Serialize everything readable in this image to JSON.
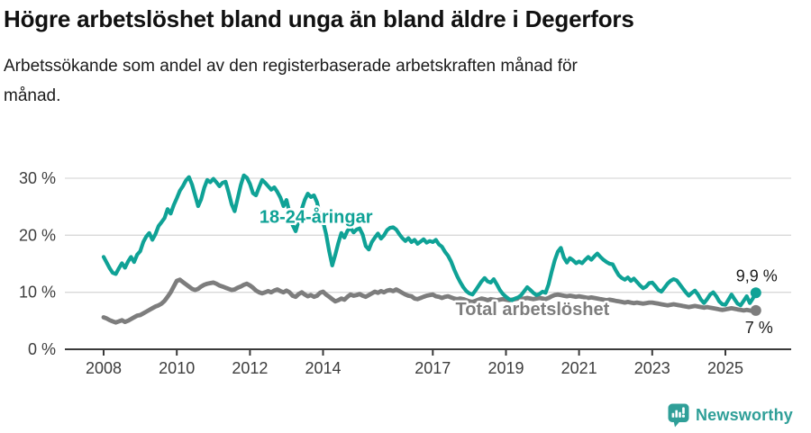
{
  "header": {
    "title": "Högre arbetslöshet bland unga än bland äldre i Degerfors",
    "subtitle_lines": [
      "Arbetssökande som andel av den registerbaserade arbetskraften månad för",
      "månad."
    ]
  },
  "chart_data": {
    "type": "line",
    "title": "Högre arbetslöshet bland unga än bland äldre i Degerfors",
    "subtitle": "Arbetssökande som andel av den registerbaserade arbetskraften månad för månad.",
    "x_unit": "month",
    "x_start": "2008-01",
    "x_end": "2025-11",
    "ylim": [
      0,
      32
    ],
    "grid": "horizontal",
    "gridline_color": "#d9d9d9",
    "axis_color": "#3a3a3a",
    "tick_label_color": "#3d3d3d",
    "y_axis": {
      "ticks": [
        {
          "label": "0 %",
          "value": 0
        },
        {
          "label": "10 %",
          "value": 10
        },
        {
          "label": "20 %",
          "value": 20
        },
        {
          "label": "30 %",
          "value": 30
        }
      ]
    },
    "x_axis": {
      "ticks": [
        {
          "label": "2008",
          "year": 2008
        },
        {
          "label": "2010",
          "year": 2010
        },
        {
          "label": "2012",
          "year": 2012
        },
        {
          "label": "2014",
          "year": 2014
        },
        {
          "label": "2017",
          "year": 2017
        },
        {
          "label": "2019",
          "year": 2019
        },
        {
          "label": "2021",
          "year": 2021
        },
        {
          "label": "2023",
          "year": 2023
        },
        {
          "label": "2025",
          "year": 2025
        }
      ]
    },
    "series": [
      {
        "id": "youth",
        "name": "18-24-åringar",
        "color": "#0fa296",
        "end_label": "9,9 %",
        "end_label_offset": [
          24,
          -13
        ],
        "values": [
          16.2,
          15.2,
          14.2,
          13.4,
          13.2,
          14.2,
          15.1,
          14.3,
          15.4,
          16.2,
          15.3,
          16.6,
          17.2,
          18.8,
          19.8,
          20.4,
          19.2,
          20.2,
          21.6,
          22.3,
          23.0,
          24.6,
          23.8,
          25.3,
          26.5,
          27.8,
          28.6,
          29.6,
          30.2,
          28.9,
          27.0,
          25.1,
          26.3,
          28.3,
          29.7,
          29.3,
          29.9,
          29.3,
          28.6,
          29.2,
          29.4,
          27.5,
          25.4,
          24.2,
          26.5,
          28.8,
          30.5,
          30.1,
          29.0,
          27.4,
          27.0,
          28.4,
          29.7,
          29.2,
          28.6,
          28.0,
          28.4,
          27.6,
          26.6,
          25.1,
          26.2,
          24.0,
          21.8,
          20.7,
          22.6,
          24.6,
          26.2,
          27.3,
          26.7,
          27.0,
          25.8,
          23.4,
          22.4,
          20.2,
          17.2,
          14.7,
          16.6,
          18.6,
          20.4,
          19.6,
          20.8,
          21.3,
          20.5,
          21.0,
          21.2,
          20.1,
          18.1,
          17.5,
          18.8,
          19.6,
          20.3,
          19.4,
          20.0,
          20.9,
          21.3,
          21.4,
          21.0,
          20.2,
          19.5,
          19.0,
          19.5,
          18.8,
          19.2,
          18.5,
          18.9,
          19.3,
          18.7,
          19.0,
          18.8,
          19.2,
          18.4,
          18.0,
          17.1,
          16.4,
          15.4,
          14.0,
          12.8,
          11.8,
          10.9,
          10.2,
          9.8,
          9.6,
          10.3,
          11.1,
          11.9,
          12.5,
          11.9,
          11.7,
          12.3,
          11.4,
          10.4,
          9.7,
          9.2,
          8.8,
          8.6,
          8.9,
          9.1,
          9.5,
          10.2,
          10.9,
          10.4,
          9.9,
          9.5,
          9.7,
          10.1,
          9.9,
          11.4,
          13.6,
          15.6,
          17.1,
          17.8,
          16.1,
          15.2,
          16.0,
          15.6,
          15.1,
          15.4,
          15.1,
          15.7,
          16.2,
          15.7,
          16.3,
          16.8,
          16.2,
          15.7,
          15.3,
          15.0,
          14.9,
          13.9,
          13.0,
          12.5,
          12.2,
          12.6,
          12.0,
          12.4,
          11.8,
          11.2,
          10.7,
          11.0,
          11.6,
          11.7,
          11.1,
          10.4,
          10.1,
          10.8,
          11.5,
          12.0,
          12.3,
          12.1,
          11.4,
          10.7,
          10.0,
          9.4,
          9.9,
          10.3,
          9.6,
          8.7,
          8.1,
          8.8,
          9.6,
          10.0,
          9.3,
          8.4,
          7.9,
          7.8,
          8.7,
          9.6,
          8.8,
          8.0,
          7.7,
          8.5,
          9.3,
          8.1,
          8.9,
          9.9
        ]
      },
      {
        "id": "total",
        "name": "Total arbetslöshet",
        "color": "#7d7d7d",
        "end_label": "7 %",
        "end_label_offset": [
          19,
          25
        ],
        "values": [
          5.6,
          5.4,
          5.1,
          4.9,
          4.7,
          4.9,
          5.1,
          4.8,
          5.0,
          5.3,
          5.6,
          5.9,
          6.0,
          6.3,
          6.6,
          6.9,
          7.2,
          7.5,
          7.7,
          8.0,
          8.5,
          9.2,
          10.0,
          11.0,
          12.0,
          12.2,
          11.8,
          11.4,
          11.0,
          10.6,
          10.4,
          10.6,
          11.0,
          11.3,
          11.5,
          11.6,
          11.7,
          11.5,
          11.2,
          11.0,
          10.8,
          10.6,
          10.4,
          10.5,
          10.8,
          11.0,
          11.3,
          11.5,
          11.2,
          10.8,
          10.3,
          10.0,
          9.8,
          10.0,
          10.2,
          10.0,
          10.3,
          10.5,
          10.2,
          10.0,
          10.3,
          10.0,
          9.4,
          9.2,
          9.7,
          10.0,
          9.6,
          9.3,
          9.5,
          9.2,
          9.4,
          9.9,
          10.1,
          9.6,
          9.2,
          8.8,
          8.4,
          8.6,
          8.9,
          8.7,
          9.2,
          9.6,
          9.4,
          9.5,
          9.7,
          9.4,
          9.2,
          9.5,
          9.8,
          10.1,
          9.9,
          10.2,
          10.0,
          10.3,
          10.4,
          10.2,
          10.5,
          10.2,
          9.9,
          9.6,
          9.4,
          9.3,
          8.9,
          8.8,
          9.0,
          9.2,
          9.4,
          9.5,
          9.6,
          9.3,
          9.2,
          9.0,
          9.2,
          9.3,
          9.1,
          8.9,
          8.8,
          8.9,
          8.8,
          8.6,
          8.4,
          8.3,
          8.5,
          8.7,
          8.9,
          8.8,
          8.6,
          8.8,
          8.7,
          8.6,
          8.7,
          8.8,
          8.7,
          8.6,
          8.7,
          8.8,
          8.9,
          8.8,
          8.9,
          9.0,
          8.9,
          8.8,
          8.9,
          9.0,
          8.9,
          8.8,
          9.0,
          9.3,
          9.5,
          9.6,
          9.5,
          9.4,
          9.3,
          9.4,
          9.3,
          9.2,
          9.3,
          9.2,
          9.1,
          9.0,
          9.1,
          9.0,
          8.9,
          8.8,
          8.7,
          8.6,
          8.7,
          8.6,
          8.5,
          8.4,
          8.3,
          8.2,
          8.3,
          8.2,
          8.1,
          8.2,
          8.1,
          8.0,
          8.1,
          8.2,
          8.2,
          8.1,
          8.0,
          7.9,
          7.8,
          7.7,
          7.8,
          7.9,
          7.8,
          7.7,
          7.6,
          7.5,
          7.4,
          7.5,
          7.6,
          7.5,
          7.4,
          7.3,
          7.4,
          7.3,
          7.2,
          7.1,
          7.0,
          6.9,
          7.0,
          7.1,
          7.2,
          7.1,
          7.0,
          6.9,
          6.8,
          6.9,
          6.8,
          6.7,
          6.8
        ]
      }
    ],
    "annotations": [
      {
        "series_index": 0,
        "year": 2012.26,
        "pct": 22.2
      },
      {
        "series_index": 1,
        "year": 2017.62,
        "pct": 6.0
      }
    ],
    "legend_position": "inline-labels"
  },
  "footer": {
    "brand": "Newsworthy",
    "brand_color": "#2f9f98"
  }
}
